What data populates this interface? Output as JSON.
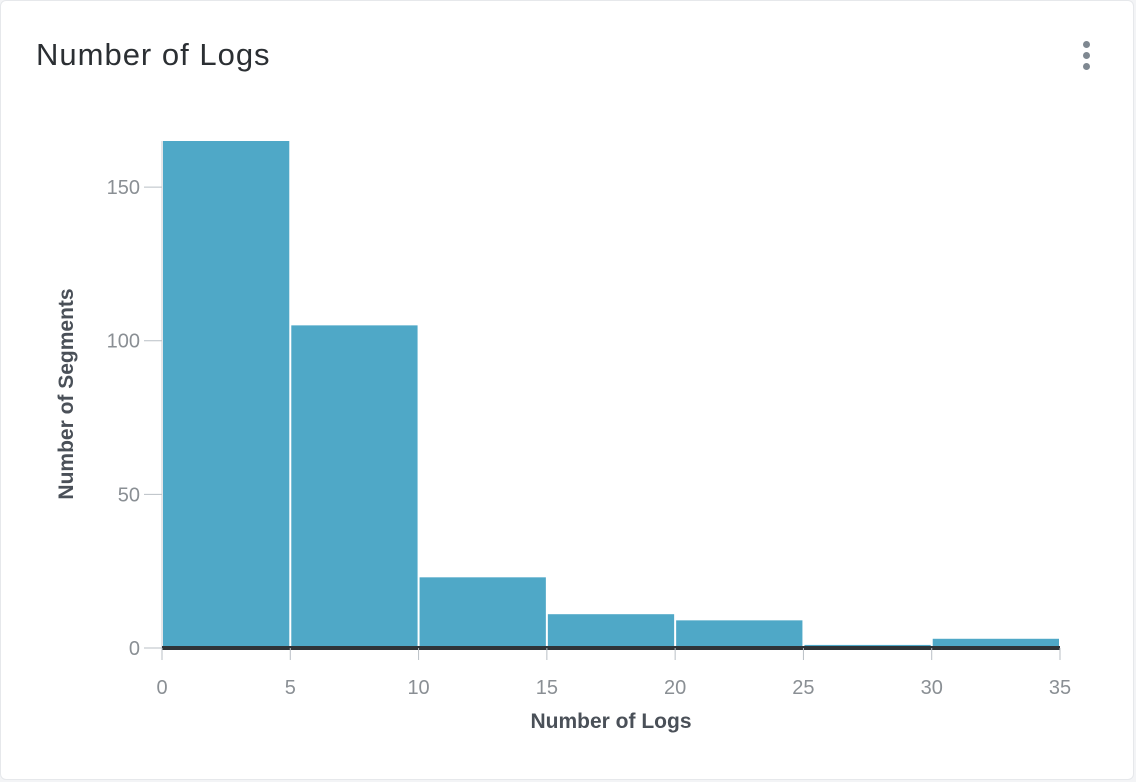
{
  "card": {
    "title": "Number of Logs",
    "menu_icon": "more-vertical-icon"
  },
  "chart_data": {
    "type": "bar",
    "bins": [
      [
        0,
        5
      ],
      [
        5,
        10
      ],
      [
        10,
        15
      ],
      [
        15,
        20
      ],
      [
        20,
        25
      ],
      [
        25,
        30
      ],
      [
        30,
        35
      ]
    ],
    "values": [
      165,
      105,
      23,
      11,
      9,
      1,
      3
    ],
    "xlabel": "Number of Logs",
    "ylabel": "Number of Segments",
    "xticks": [
      "0",
      "5",
      "10",
      "15",
      "20",
      "25",
      "30",
      "35"
    ],
    "yticks": [
      "0",
      "50",
      "100",
      "150"
    ],
    "xlim": [
      0,
      35
    ],
    "ylim": [
      0,
      165
    ],
    "grid": false,
    "bar_color": "#4fa8c7",
    "baseline_color": "#2f3438"
  }
}
